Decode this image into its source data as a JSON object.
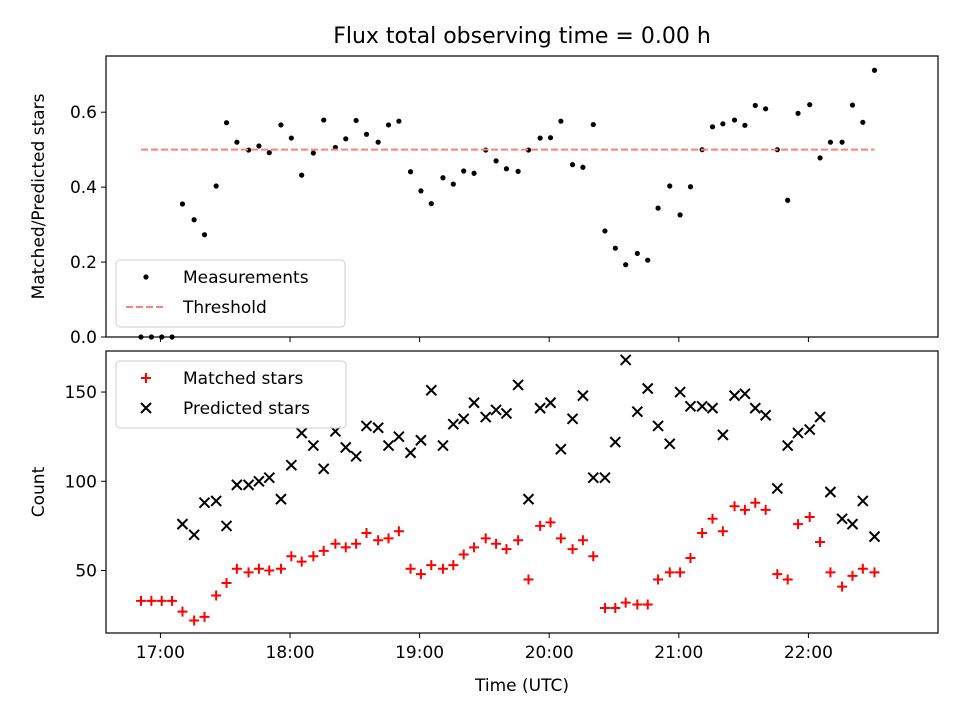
{
  "figure_title": "Flux total observing time = 0.00 h",
  "x_axis": {
    "label": "Time (UTC)",
    "tick_labels": [
      "17:00",
      "18:00",
      "19:00",
      "20:00",
      "21:00",
      "22:00"
    ]
  },
  "chart_data": [
    {
      "type": "scatter",
      "title": "Flux total observing time = 0.00 h",
      "xlabel": "",
      "ylabel": "Matched/Predicted stars",
      "x_unit": "UTC hour",
      "xlim": [
        16.58,
        23.0
      ],
      "ylim": [
        0,
        0.75
      ],
      "yticks": [
        0.0,
        0.2,
        0.4,
        0.6
      ],
      "ytick_labels": [
        "0.0",
        "0.2",
        "0.4",
        "0.6"
      ],
      "grid": false,
      "legend_position": "lower-left",
      "series": [
        {
          "name": "Measurements",
          "marker": "dot",
          "color": "#000000",
          "x": [
            16.85,
            16.93,
            17.01,
            17.09,
            17.17,
            17.26,
            17.34,
            17.43,
            17.51,
            17.59,
            17.68,
            17.76,
            17.84,
            17.93,
            18.01,
            18.09,
            18.18,
            18.26,
            18.35,
            18.43,
            18.51,
            18.59,
            18.68,
            18.76,
            18.84,
            18.93,
            19.01,
            19.09,
            19.18,
            19.26,
            19.34,
            19.42,
            19.51,
            19.59,
            19.67,
            19.76,
            19.84,
            19.93,
            20.01,
            20.09,
            20.18,
            20.26,
            20.34,
            20.43,
            20.51,
            20.59,
            20.68,
            20.76,
            20.84,
            20.93,
            21.01,
            21.09,
            21.18,
            21.26,
            21.34,
            21.43,
            21.51,
            21.59,
            21.67,
            21.76,
            21.84,
            21.92,
            22.01,
            22.09,
            22.17,
            22.26,
            22.34,
            22.42,
            22.51
          ],
          "y": [
            0.0,
            0.0,
            0.0,
            0.0,
            0.355,
            0.313,
            0.273,
            0.403,
            0.572,
            0.52,
            0.499,
            0.51,
            0.492,
            0.566,
            0.531,
            0.432,
            0.491,
            0.579,
            0.506,
            0.529,
            0.578,
            0.541,
            0.52,
            0.566,
            0.576,
            0.441,
            0.39,
            0.356,
            0.425,
            0.408,
            0.443,
            0.437,
            0.499,
            0.47,
            0.449,
            0.442,
            0.499,
            0.531,
            0.532,
            0.576,
            0.46,
            0.453,
            0.567,
            0.283,
            0.237,
            0.193,
            0.223,
            0.205,
            0.344,
            0.403,
            0.326,
            0.401,
            0.5,
            0.561,
            0.569,
            0.579,
            0.565,
            0.618,
            0.609,
            0.5,
            0.365,
            0.597,
            0.62,
            0.478,
            0.52,
            0.52,
            0.619,
            0.573,
            0.712
          ]
        },
        {
          "name": "Threshold",
          "style": "dashed",
          "color": "#ff7f7f",
          "x": [
            16.85,
            22.51
          ],
          "y": [
            0.5,
            0.5
          ]
        }
      ]
    },
    {
      "type": "scatter",
      "title": "",
      "xlabel": "Time (UTC)",
      "ylabel": "Count",
      "x_unit": "UTC hour",
      "xlim": [
        16.58,
        23.0
      ],
      "ylim": [
        15,
        173
      ],
      "yticks": [
        50,
        100,
        150
      ],
      "ytick_labels": [
        "50",
        "100",
        "150"
      ],
      "xticks": [
        17,
        18,
        19,
        20,
        21,
        22
      ],
      "xtick_labels": [
        "17:00",
        "18:00",
        "19:00",
        "20:00",
        "21:00",
        "22:00"
      ],
      "grid": false,
      "legend_position": "upper-left",
      "series": [
        {
          "name": "Matched stars",
          "marker": "plus",
          "color": "#ff0000",
          "x": [
            16.85,
            16.93,
            17.01,
            17.09,
            17.17,
            17.26,
            17.34,
            17.43,
            17.51,
            17.59,
            17.68,
            17.76,
            17.84,
            17.93,
            18.01,
            18.09,
            18.18,
            18.26,
            18.35,
            18.43,
            18.51,
            18.59,
            18.68,
            18.76,
            18.84,
            18.93,
            19.01,
            19.09,
            19.18,
            19.26,
            19.34,
            19.42,
            19.51,
            19.59,
            19.67,
            19.76,
            19.84,
            19.93,
            20.01,
            20.09,
            20.18,
            20.26,
            20.34,
            20.43,
            20.51,
            20.59,
            20.68,
            20.76,
            20.84,
            20.93,
            21.01,
            21.09,
            21.18,
            21.26,
            21.34,
            21.43,
            21.51,
            21.59,
            21.67,
            21.76,
            21.84,
            21.92,
            22.01,
            22.09,
            22.17,
            22.26,
            22.34,
            22.42,
            22.51
          ],
          "y": [
            33,
            33,
            33,
            33,
            27,
            22,
            24,
            36,
            43,
            51,
            49,
            51,
            50,
            51,
            58,
            55,
            58,
            61,
            65,
            63,
            65,
            71,
            67,
            68,
            72,
            51,
            48,
            53,
            51,
            53,
            59,
            63,
            68,
            65,
            62,
            67,
            45,
            75,
            77,
            68,
            62,
            67,
            58,
            29,
            29,
            32,
            31,
            31,
            45,
            49,
            49,
            57,
            71,
            79,
            72,
            86,
            84,
            88,
            84,
            48,
            45,
            76,
            80,
            66,
            49,
            41,
            47,
            51,
            49
          ]
        },
        {
          "name": "Predicted stars",
          "marker": "x",
          "color": "#000000",
          "x": [
            17.17,
            17.26,
            17.34,
            17.43,
            17.51,
            17.59,
            17.68,
            17.76,
            17.84,
            17.93,
            18.01,
            18.09,
            18.18,
            18.26,
            18.35,
            18.43,
            18.51,
            18.59,
            18.68,
            18.76,
            18.84,
            18.93,
            19.01,
            19.09,
            19.18,
            19.26,
            19.34,
            19.42,
            19.51,
            19.59,
            19.67,
            19.76,
            19.84,
            19.93,
            20.01,
            20.09,
            20.18,
            20.26,
            20.34,
            20.43,
            20.51,
            20.59,
            20.68,
            20.76,
            20.84,
            20.93,
            21.01,
            21.09,
            21.18,
            21.26,
            21.34,
            21.43,
            21.51,
            21.59,
            21.67,
            21.76,
            21.84,
            21.92,
            22.01,
            22.09,
            22.17,
            22.26,
            22.34,
            22.42,
            22.51
          ],
          "y": [
            76,
            70,
            88,
            89,
            75,
            98,
            98,
            100,
            102,
            90,
            109,
            127,
            120,
            107,
            128,
            119,
            114,
            131,
            130,
            120,
            125,
            116,
            123,
            151,
            120,
            132,
            135,
            144,
            136,
            140,
            138,
            154,
            90,
            141,
            144,
            118,
            135,
            148,
            102,
            102,
            122,
            168,
            139,
            152,
            131,
            121,
            150,
            142,
            142,
            141,
            126,
            148,
            149,
            141,
            137,
            96,
            120,
            127,
            129,
            136,
            94,
            79,
            76,
            89,
            69
          ]
        }
      ]
    }
  ]
}
